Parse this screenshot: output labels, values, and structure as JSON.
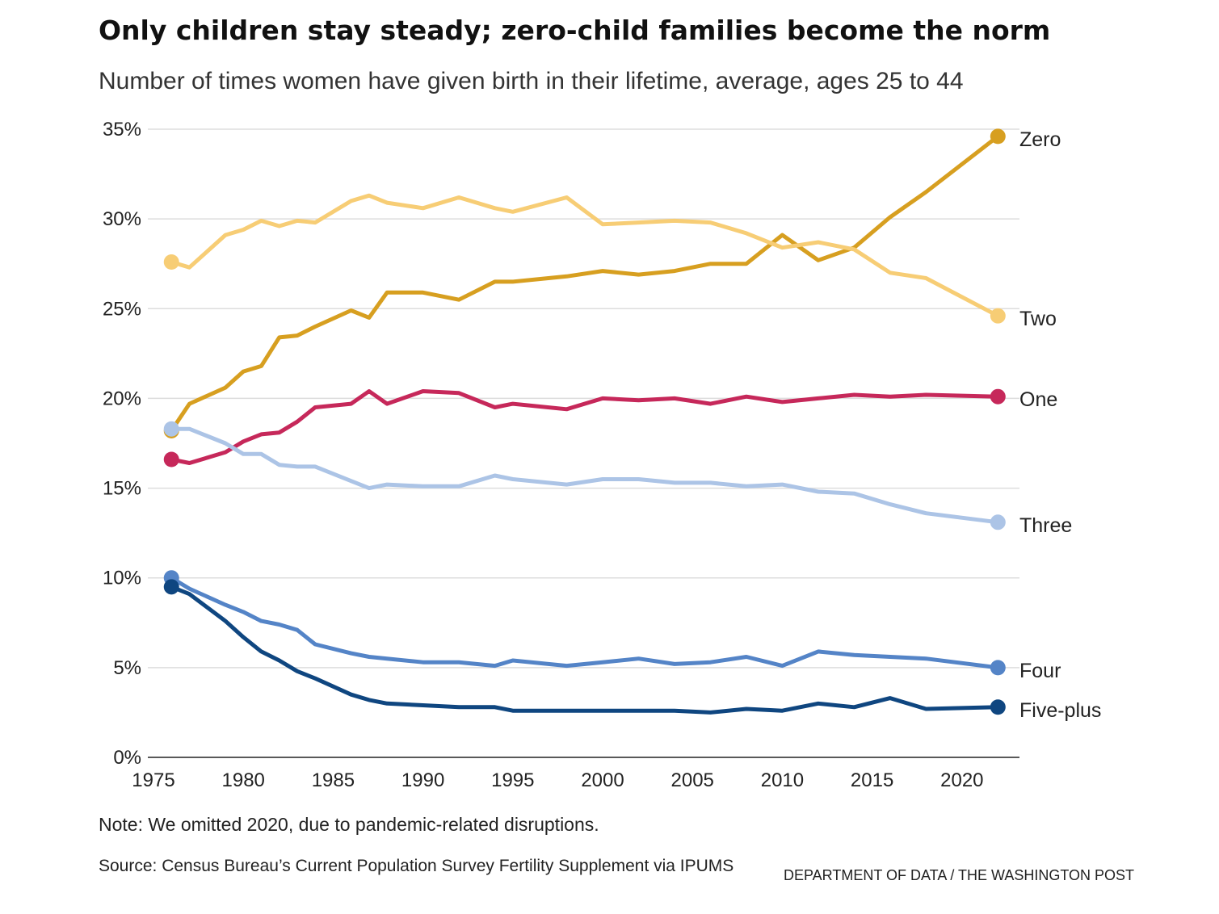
{
  "header": {
    "title": "Only children stay steady; zero-child families become the norm",
    "subtitle": "Number of times women have given birth in their lifetime, average, ages 25 to 44"
  },
  "footer": {
    "note": "Note: We omitted 2020, due to pandemic-related disruptions.",
    "source": "Source: Census Bureau’s Current Population Survey Fertility Supplement via IPUMS",
    "credit": "DEPARTMENT OF DATA / THE WASHINGTON POST"
  },
  "chart_data": {
    "type": "line",
    "title": "Only children stay steady; zero-child families become the norm",
    "subtitle": "Number of times women have given birth in their lifetime, average, ages 25 to 44",
    "xlim": [
      1975,
      2023
    ],
    "ylim": [
      0,
      35
    ],
    "x_ticks": [
      1975,
      1980,
      1985,
      1990,
      1995,
      2000,
      2005,
      2010,
      2015,
      2020
    ],
    "y_ticks": [
      0,
      5,
      10,
      15,
      20,
      25,
      30,
      35
    ],
    "y_tick_labels": [
      "0%",
      "5%",
      "10%",
      "15%",
      "20%",
      "25%",
      "30%",
      "35%"
    ],
    "grid": "horizontal",
    "legend": "direct labels at line ends (right)",
    "series": [
      {
        "name": "Zero",
        "color": "#d79f20",
        "points": [
          [
            1976,
            18.2
          ],
          [
            1977,
            19.7
          ],
          [
            1979,
            20.6
          ],
          [
            1980,
            21.5
          ],
          [
            1981,
            21.8
          ],
          [
            1982,
            23.4
          ],
          [
            1983,
            23.5
          ],
          [
            1984,
            24.0
          ],
          [
            1986,
            24.9
          ],
          [
            1987,
            24.5
          ],
          [
            1988,
            25.9
          ],
          [
            1990,
            25.9
          ],
          [
            1992,
            25.5
          ],
          [
            1994,
            26.5
          ],
          [
            1995,
            26.5
          ],
          [
            1998,
            26.8
          ],
          [
            2000,
            27.1
          ],
          [
            2002,
            26.9
          ],
          [
            2004,
            27.1
          ],
          [
            2006,
            27.5
          ],
          [
            2008,
            27.5
          ],
          [
            2010,
            29.1
          ],
          [
            2012,
            27.7
          ],
          [
            2014,
            28.4
          ],
          [
            2016,
            30.1
          ],
          [
            2018,
            31.5
          ],
          [
            2022,
            34.6
          ]
        ]
      },
      {
        "name": "Two",
        "color": "#f7cd75",
        "points": [
          [
            1976,
            27.6
          ],
          [
            1977,
            27.3
          ],
          [
            1979,
            29.1
          ],
          [
            1980,
            29.4
          ],
          [
            1981,
            29.9
          ],
          [
            1982,
            29.6
          ],
          [
            1983,
            29.9
          ],
          [
            1984,
            29.8
          ],
          [
            1986,
            31.0
          ],
          [
            1987,
            31.3
          ],
          [
            1988,
            30.9
          ],
          [
            1990,
            30.6
          ],
          [
            1992,
            31.2
          ],
          [
            1994,
            30.6
          ],
          [
            1995,
            30.4
          ],
          [
            1998,
            31.2
          ],
          [
            2000,
            29.7
          ],
          [
            2002,
            29.8
          ],
          [
            2004,
            29.9
          ],
          [
            2006,
            29.8
          ],
          [
            2008,
            29.2
          ],
          [
            2010,
            28.4
          ],
          [
            2012,
            28.7
          ],
          [
            2014,
            28.3
          ],
          [
            2016,
            27.0
          ],
          [
            2018,
            26.7
          ],
          [
            2022,
            24.6
          ]
        ]
      },
      {
        "name": "One",
        "color": "#c6285a",
        "points": [
          [
            1976,
            16.6
          ],
          [
            1977,
            16.4
          ],
          [
            1979,
            17.0
          ],
          [
            1980,
            17.6
          ],
          [
            1981,
            18.0
          ],
          [
            1982,
            18.1
          ],
          [
            1983,
            18.7
          ],
          [
            1984,
            19.5
          ],
          [
            1986,
            19.7
          ],
          [
            1987,
            20.4
          ],
          [
            1988,
            19.7
          ],
          [
            1990,
            20.4
          ],
          [
            1992,
            20.3
          ],
          [
            1994,
            19.5
          ],
          [
            1995,
            19.7
          ],
          [
            1998,
            19.4
          ],
          [
            2000,
            20.0
          ],
          [
            2002,
            19.9
          ],
          [
            2004,
            20.0
          ],
          [
            2006,
            19.7
          ],
          [
            2008,
            20.1
          ],
          [
            2010,
            19.8
          ],
          [
            2012,
            20.0
          ],
          [
            2014,
            20.2
          ],
          [
            2016,
            20.1
          ],
          [
            2018,
            20.2
          ],
          [
            2022,
            20.1
          ]
        ]
      },
      {
        "name": "Three",
        "color": "#acc4e6",
        "points": [
          [
            1976,
            18.3
          ],
          [
            1977,
            18.3
          ],
          [
            1979,
            17.5
          ],
          [
            1980,
            16.9
          ],
          [
            1981,
            16.9
          ],
          [
            1982,
            16.3
          ],
          [
            1983,
            16.2
          ],
          [
            1984,
            16.2
          ],
          [
            1986,
            15.4
          ],
          [
            1987,
            15.0
          ],
          [
            1988,
            15.2
          ],
          [
            1990,
            15.1
          ],
          [
            1992,
            15.1
          ],
          [
            1994,
            15.7
          ],
          [
            1995,
            15.5
          ],
          [
            1998,
            15.2
          ],
          [
            2000,
            15.5
          ],
          [
            2002,
            15.5
          ],
          [
            2004,
            15.3
          ],
          [
            2006,
            15.3
          ],
          [
            2008,
            15.1
          ],
          [
            2010,
            15.2
          ],
          [
            2012,
            14.8
          ],
          [
            2014,
            14.7
          ],
          [
            2016,
            14.1
          ],
          [
            2018,
            13.6
          ],
          [
            2022,
            13.1
          ]
        ]
      },
      {
        "name": "Four",
        "color": "#5484c7",
        "points": [
          [
            1976,
            10.0
          ],
          [
            1977,
            9.4
          ],
          [
            1979,
            8.5
          ],
          [
            1980,
            8.1
          ],
          [
            1981,
            7.6
          ],
          [
            1982,
            7.4
          ],
          [
            1983,
            7.1
          ],
          [
            1984,
            6.3
          ],
          [
            1986,
            5.8
          ],
          [
            1987,
            5.6
          ],
          [
            1988,
            5.5
          ],
          [
            1990,
            5.3
          ],
          [
            1992,
            5.3
          ],
          [
            1994,
            5.1
          ],
          [
            1995,
            5.4
          ],
          [
            1998,
            5.1
          ],
          [
            2000,
            5.3
          ],
          [
            2002,
            5.5
          ],
          [
            2004,
            5.2
          ],
          [
            2006,
            5.3
          ],
          [
            2008,
            5.6
          ],
          [
            2010,
            5.1
          ],
          [
            2012,
            5.9
          ],
          [
            2014,
            5.7
          ],
          [
            2016,
            5.6
          ],
          [
            2018,
            5.5
          ],
          [
            2022,
            5.0
          ]
        ]
      },
      {
        "name": "Five-plus",
        "color": "#0f4680",
        "points": [
          [
            1976,
            9.5
          ],
          [
            1977,
            9.1
          ],
          [
            1979,
            7.6
          ],
          [
            1980,
            6.7
          ],
          [
            1981,
            5.9
          ],
          [
            1982,
            5.4
          ],
          [
            1983,
            4.8
          ],
          [
            1984,
            4.4
          ],
          [
            1986,
            3.5
          ],
          [
            1987,
            3.2
          ],
          [
            1988,
            3.0
          ],
          [
            1990,
            2.9
          ],
          [
            1992,
            2.8
          ],
          [
            1994,
            2.8
          ],
          [
            1995,
            2.6
          ],
          [
            1998,
            2.6
          ],
          [
            2000,
            2.6
          ],
          [
            2002,
            2.6
          ],
          [
            2004,
            2.6
          ],
          [
            2006,
            2.5
          ],
          [
            2008,
            2.7
          ],
          [
            2010,
            2.6
          ],
          [
            2012,
            3.0
          ],
          [
            2014,
            2.8
          ],
          [
            2016,
            3.3
          ],
          [
            2018,
            2.7
          ],
          [
            2022,
            2.8
          ]
        ]
      }
    ]
  }
}
